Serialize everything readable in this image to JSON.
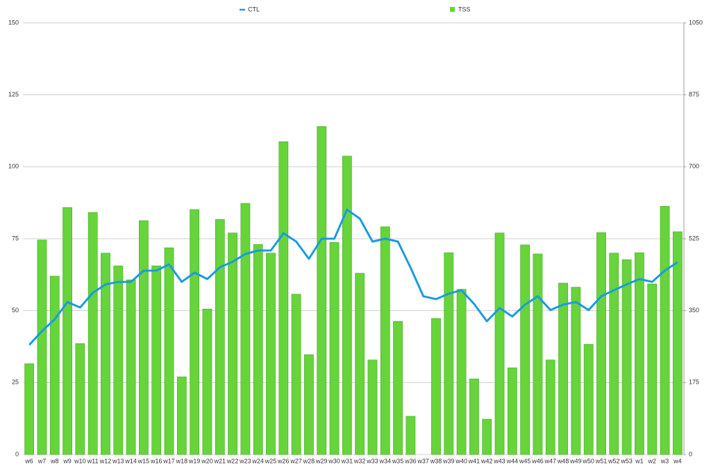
{
  "chart_data": {
    "type": "bar",
    "categories": [
      "w6",
      "w7",
      "w8",
      "w9",
      "w10",
      "w11",
      "w12",
      "w13",
      "w14",
      "w15",
      "w16",
      "w17",
      "w18",
      "w19",
      "w20",
      "w21",
      "w22",
      "w23",
      "w24",
      "w25",
      "w26",
      "w27",
      "w28",
      "w29",
      "w30",
      "w31",
      "w32",
      "w33",
      "w34",
      "w35",
      "w36",
      "w37",
      "w38",
      "w39",
      "w40",
      "w41",
      "w42",
      "w43",
      "w44",
      "w45",
      "w46",
      "w47",
      "w48",
      "w49",
      "w50",
      "w51",
      "w52",
      "w53",
      "w1",
      "w2",
      "w3",
      "w4"
    ],
    "series": [
      {
        "name": "CTL",
        "type": "line",
        "color": "#1a9be0",
        "values": [
          38.1,
          42.9,
          47,
          53,
          51.1,
          56.2,
          59.1,
          60,
          60,
          63.9,
          63.9,
          66.1,
          60,
          63.2,
          61,
          65.1,
          67,
          69.7,
          70.9,
          70.9,
          76.9,
          74,
          68,
          75,
          75,
          85.1,
          82,
          74,
          75,
          74,
          64.9,
          55,
          54,
          55.9,
          57.1,
          52.3,
          46.3,
          50.9,
          48,
          52.1,
          55,
          50.2,
          52.1,
          53,
          50.2,
          55,
          57.1,
          59.1,
          61,
          60,
          63.9,
          66.8
        ]
      },
      {
        "name": "TSS",
        "type": "bar",
        "color": "#66d43a",
        "axis": "y2",
        "values": [
          221,
          522,
          434,
          601,
          270,
          589,
          490,
          459,
          425,
          569,
          459,
          503,
          189,
          596,
          354,
          572,
          539,
          611,
          511,
          490,
          761,
          390,
          243,
          798,
          516,
          726,
          441,
          230,
          554,
          324,
          93,
          0,
          331,
          491,
          402,
          184,
          86,
          539,
          211,
          510,
          488,
          230,
          417,
          407,
          268,
          540,
          490,
          474,
          491,
          415,
          604,
          542
        ]
      }
    ],
    "ylim": [
      0,
      150
    ],
    "yticks": [
      0,
      25,
      50,
      75,
      100,
      125,
      150
    ],
    "y2lim": [
      0,
      1050
    ],
    "y2ticks": [
      0,
      175,
      350,
      525,
      700,
      875,
      1050
    ],
    "grid": true
  }
}
